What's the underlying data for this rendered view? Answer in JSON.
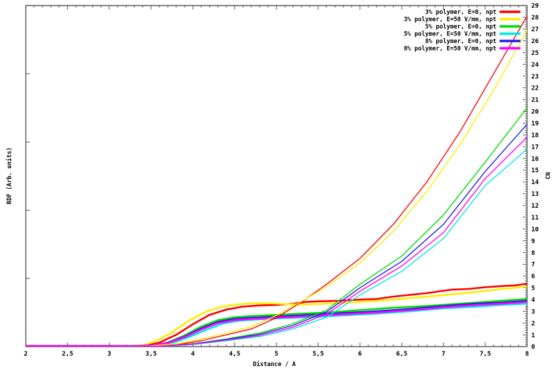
{
  "figure": {
    "background": "#ffffff",
    "border_color": "#555555",
    "text_color": "#000000"
  },
  "chart_data": {
    "type": "line",
    "title": "",
    "xlabel": "Distance / A",
    "ylabel": "RDF (Arb. units)",
    "y2label": "CN",
    "x_range": [
      2,
      8
    ],
    "x_major_step": 0.5,
    "x_minor_step": 0.1,
    "x_tick_labels": [
      "2",
      "2,5",
      "3",
      "3,5",
      "4",
      "4,5",
      "5",
      "5,5",
      "6",
      "6,5",
      "7",
      "7,5",
      "8"
    ],
    "y2_range": [
      0,
      29
    ],
    "y2_major_step": 1,
    "y2_minor_step": 0.2,
    "y_left_major_tick_count": 6,
    "grid": false,
    "legend_position": "top-right-inside",
    "legend": [
      {
        "label": "3% polymer, E=0, npt",
        "color": "#ff0000"
      },
      {
        "label": "3% polymer, E=50 V/mm, npt",
        "color": "#ffee00"
      },
      {
        "label": "5% polymer, E=0, npt",
        "color": "#00dd00"
      },
      {
        "label": "5% polymer, E=50 V/mm, npt",
        "color": "#00e8e8"
      },
      {
        "label": "8% polymer, E=0, npt",
        "color": "#1f1fe8"
      },
      {
        "label": "8% polymer, E=50 V/mm, npt",
        "color": "#ff00ff"
      }
    ],
    "series": [
      {
        "name": "rdf-3pct-e0",
        "kind": "rdf",
        "color": "#ff0000",
        "points": [
          [
            2,
            0.05
          ],
          [
            2.5,
            0.05
          ],
          [
            3,
            0.05
          ],
          [
            3.3,
            0.06
          ],
          [
            3.45,
            0.1
          ],
          [
            3.6,
            0.35
          ],
          [
            3.8,
            1.0
          ],
          [
            4.0,
            1.9
          ],
          [
            4.2,
            2.7
          ],
          [
            4.4,
            3.15
          ],
          [
            4.6,
            3.4
          ],
          [
            4.8,
            3.5
          ],
          [
            5.0,
            3.55
          ],
          [
            5.2,
            3.65
          ],
          [
            5.35,
            3.8
          ],
          [
            5.5,
            3.85
          ],
          [
            5.75,
            3.9
          ],
          [
            6.0,
            4.0
          ],
          [
            6.2,
            4.05
          ],
          [
            6.4,
            4.25
          ],
          [
            6.6,
            4.4
          ],
          [
            6.8,
            4.55
          ],
          [
            7.0,
            4.75
          ],
          [
            7.1,
            4.85
          ],
          [
            7.3,
            4.9
          ],
          [
            7.5,
            5.05
          ],
          [
            7.7,
            5.15
          ],
          [
            7.85,
            5.2
          ],
          [
            8.0,
            5.35
          ]
        ]
      },
      {
        "name": "rdf-3pct-e50",
        "kind": "rdf",
        "color": "#ffee00",
        "points": [
          [
            2,
            0.05
          ],
          [
            2.5,
            0.05
          ],
          [
            3,
            0.05
          ],
          [
            3.25,
            0.06
          ],
          [
            3.4,
            0.12
          ],
          [
            3.55,
            0.45
          ],
          [
            3.75,
            1.2
          ],
          [
            3.95,
            2.2
          ],
          [
            4.15,
            2.95
          ],
          [
            4.35,
            3.4
          ],
          [
            4.55,
            3.6
          ],
          [
            4.7,
            3.68
          ],
          [
            4.9,
            3.7
          ],
          [
            5.1,
            3.62
          ],
          [
            5.3,
            3.58
          ],
          [
            5.6,
            3.65
          ],
          [
            5.9,
            3.75
          ],
          [
            6.2,
            3.9
          ],
          [
            6.5,
            4.05
          ],
          [
            6.8,
            4.25
          ],
          [
            7.1,
            4.45
          ],
          [
            7.4,
            4.65
          ],
          [
            7.7,
            4.9
          ],
          [
            8.0,
            5.1
          ]
        ]
      },
      {
        "name": "rdf-5pct-e0",
        "kind": "rdf",
        "color": "#00dd00",
        "points": [
          [
            2,
            0.05
          ],
          [
            2.5,
            0.05
          ],
          [
            3,
            0.05
          ],
          [
            3.35,
            0.06
          ],
          [
            3.5,
            0.1
          ],
          [
            3.7,
            0.35
          ],
          [
            3.9,
            0.95
          ],
          [
            4.1,
            1.7
          ],
          [
            4.3,
            2.25
          ],
          [
            4.5,
            2.5
          ],
          [
            4.7,
            2.6
          ],
          [
            5.0,
            2.7
          ],
          [
            5.3,
            2.8
          ],
          [
            5.6,
            2.9
          ],
          [
            6.0,
            3.1
          ],
          [
            6.4,
            3.3
          ],
          [
            6.8,
            3.45
          ],
          [
            7.2,
            3.65
          ],
          [
            7.6,
            3.85
          ],
          [
            8.0,
            4.05
          ]
        ]
      },
      {
        "name": "rdf-5pct-e50",
        "kind": "rdf",
        "color": "#00e8e8",
        "points": [
          [
            2,
            0.05
          ],
          [
            2.5,
            0.05
          ],
          [
            3,
            0.05
          ],
          [
            3.4,
            0.06
          ],
          [
            3.55,
            0.1
          ],
          [
            3.75,
            0.3
          ],
          [
            3.95,
            0.8
          ],
          [
            4.15,
            1.4
          ],
          [
            4.35,
            1.95
          ],
          [
            4.55,
            2.2
          ],
          [
            4.75,
            2.3
          ],
          [
            5.0,
            2.4
          ],
          [
            5.4,
            2.5
          ],
          [
            5.8,
            2.65
          ],
          [
            6.2,
            2.8
          ],
          [
            6.6,
            3.0
          ],
          [
            7.0,
            3.25
          ],
          [
            7.4,
            3.4
          ],
          [
            7.7,
            3.55
          ],
          [
            8.0,
            3.65
          ]
        ]
      },
      {
        "name": "rdf-8pct-e0",
        "kind": "rdf",
        "color": "#1f1fe8",
        "points": [
          [
            2,
            0.05
          ],
          [
            2.5,
            0.05
          ],
          [
            3,
            0.05
          ],
          [
            3.35,
            0.06
          ],
          [
            3.5,
            0.1
          ],
          [
            3.7,
            0.32
          ],
          [
            3.9,
            0.85
          ],
          [
            4.1,
            1.55
          ],
          [
            4.3,
            2.1
          ],
          [
            4.5,
            2.35
          ],
          [
            4.7,
            2.45
          ],
          [
            5.0,
            2.55
          ],
          [
            5.4,
            2.7
          ],
          [
            5.8,
            2.85
          ],
          [
            6.2,
            3.0
          ],
          [
            6.6,
            3.2
          ],
          [
            7.0,
            3.45
          ],
          [
            7.4,
            3.65
          ],
          [
            7.7,
            3.75
          ],
          [
            8.0,
            3.9
          ]
        ]
      },
      {
        "name": "rdf-8pct-e50",
        "kind": "rdf",
        "color": "#ff00ff",
        "points": [
          [
            2,
            0.05
          ],
          [
            2.5,
            0.05
          ],
          [
            3,
            0.05
          ],
          [
            3.35,
            0.06
          ],
          [
            3.5,
            0.1
          ],
          [
            3.7,
            0.3
          ],
          [
            3.9,
            0.8
          ],
          [
            4.1,
            1.45
          ],
          [
            4.3,
            2.0
          ],
          [
            4.5,
            2.25
          ],
          [
            4.7,
            2.35
          ],
          [
            5.0,
            2.45
          ],
          [
            5.4,
            2.6
          ],
          [
            5.8,
            2.75
          ],
          [
            6.2,
            2.9
          ],
          [
            6.6,
            3.1
          ],
          [
            7.0,
            3.35
          ],
          [
            7.4,
            3.55
          ],
          [
            7.7,
            3.65
          ],
          [
            8.0,
            3.8
          ]
        ]
      },
      {
        "name": "cn-3pct-e0",
        "kind": "cn",
        "color": "#ff0000",
        "points": [
          [
            2,
            0.02
          ],
          [
            3,
            0.02
          ],
          [
            3.5,
            0.03
          ],
          [
            3.8,
            0.15
          ],
          [
            4.1,
            0.5
          ],
          [
            4.4,
            1.0
          ],
          [
            4.7,
            1.5
          ],
          [
            5.0,
            2.45
          ],
          [
            5.3,
            3.8
          ],
          [
            5.6,
            5.3
          ],
          [
            6.0,
            7.5
          ],
          [
            6.4,
            10.4
          ],
          [
            6.8,
            14.0
          ],
          [
            7.2,
            18.3
          ],
          [
            7.6,
            23.2
          ],
          [
            8.0,
            28.1
          ]
        ]
      },
      {
        "name": "cn-3pct-e50",
        "kind": "cn",
        "color": "#ffee00",
        "points": [
          [
            2,
            0.02
          ],
          [
            3,
            0.02
          ],
          [
            3.45,
            0.03
          ],
          [
            3.8,
            0.25
          ],
          [
            4.1,
            0.65
          ],
          [
            4.4,
            1.15
          ],
          [
            4.7,
            1.7
          ],
          [
            5.0,
            2.65
          ],
          [
            5.3,
            3.85
          ],
          [
            5.6,
            5.1
          ],
          [
            6.0,
            7.1
          ],
          [
            6.4,
            9.8
          ],
          [
            6.8,
            13.2
          ],
          [
            7.2,
            17.2
          ],
          [
            7.6,
            21.8
          ],
          [
            8.0,
            26.9
          ]
        ]
      },
      {
        "name": "cn-5pct-e0",
        "kind": "cn",
        "color": "#00dd00",
        "points": [
          [
            2,
            0.02
          ],
          [
            3,
            0.02
          ],
          [
            3.6,
            0.03
          ],
          [
            4.0,
            0.25
          ],
          [
            4.4,
            0.65
          ],
          [
            4.8,
            1.15
          ],
          [
            5.2,
            1.95
          ],
          [
            5.6,
            3.1
          ],
          [
            6.0,
            5.3
          ],
          [
            6.5,
            7.7
          ],
          [
            7.0,
            11.2
          ],
          [
            7.5,
            15.7
          ],
          [
            8.0,
            20.3
          ]
        ]
      },
      {
        "name": "cn-5pct-e50",
        "kind": "cn",
        "color": "#00e8e8",
        "points": [
          [
            2,
            0.02
          ],
          [
            3,
            0.02
          ],
          [
            3.65,
            0.03
          ],
          [
            4.0,
            0.18
          ],
          [
            4.4,
            0.5
          ],
          [
            4.8,
            0.85
          ],
          [
            5.2,
            1.5
          ],
          [
            5.6,
            2.5
          ],
          [
            6.0,
            4.4
          ],
          [
            6.5,
            6.4
          ],
          [
            7.0,
            9.2
          ],
          [
            7.5,
            13.7
          ],
          [
            8.0,
            16.8
          ]
        ]
      },
      {
        "name": "cn-8pct-e0",
        "kind": "cn",
        "color": "#1f1fe8",
        "points": [
          [
            2,
            0.02
          ],
          [
            3,
            0.02
          ],
          [
            3.6,
            0.03
          ],
          [
            4.0,
            0.22
          ],
          [
            4.4,
            0.6
          ],
          [
            4.8,
            1.05
          ],
          [
            5.2,
            1.8
          ],
          [
            5.6,
            2.95
          ],
          [
            6.0,
            5.0
          ],
          [
            6.5,
            7.25
          ],
          [
            7.0,
            10.4
          ],
          [
            7.5,
            14.9
          ],
          [
            8.0,
            18.9
          ]
        ]
      },
      {
        "name": "cn-8pct-e50",
        "kind": "cn",
        "color": "#ff00ff",
        "points": [
          [
            2,
            0.02
          ],
          [
            3,
            0.02
          ],
          [
            3.6,
            0.03
          ],
          [
            4.0,
            0.2
          ],
          [
            4.4,
            0.55
          ],
          [
            4.8,
            0.95
          ],
          [
            5.2,
            1.65
          ],
          [
            5.6,
            2.75
          ],
          [
            6.0,
            4.7
          ],
          [
            6.5,
            6.85
          ],
          [
            7.0,
            9.7
          ],
          [
            7.5,
            14.3
          ],
          [
            8.0,
            17.8
          ]
        ]
      }
    ]
  }
}
